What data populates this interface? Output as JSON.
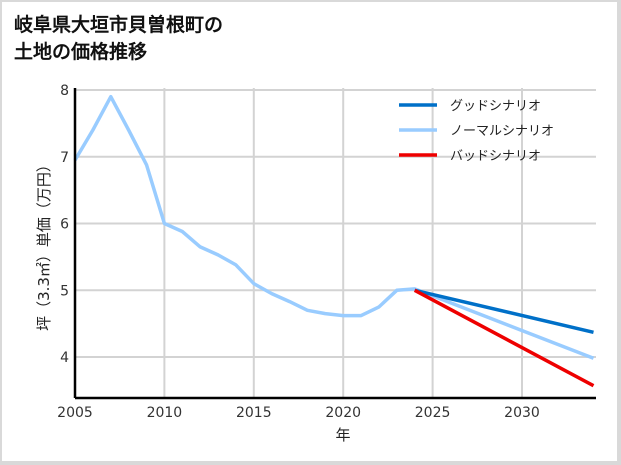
{
  "title_line1": "岐阜県大垣市貝曽根町の",
  "title_line2": "土地の価格推移",
  "chart_data": {
    "type": "line",
    "title": "岐阜県大垣市貝曽根町の土地の価格推移",
    "xlabel": "年",
    "ylabel": "坪（3.3㎡）単価（万円）",
    "xlim": [
      2005,
      2034
    ],
    "ylim": [
      3.4,
      8.05
    ],
    "xticks": [
      2005,
      2010,
      2015,
      2020,
      2025,
      2030
    ],
    "yticks": [
      4,
      5,
      6,
      7,
      8
    ],
    "grid": true,
    "legend_position": "upper right",
    "series": [
      {
        "name": "グッドシナリオ",
        "color": "#0070c8",
        "x": [
          2024,
          2034
        ],
        "values": [
          5.0,
          4.37
        ]
      },
      {
        "name": "ノーマルシナリオ",
        "color": "#99ccff",
        "x": [
          2005,
          2006,
          2007,
          2008,
          2009,
          2010,
          2011,
          2012,
          2013,
          2014,
          2015,
          2016,
          2017,
          2018,
          2019,
          2020,
          2021,
          2022,
          2023,
          2024,
          2034
        ],
        "values": [
          6.95,
          7.4,
          7.9,
          7.4,
          6.88,
          6.0,
          5.88,
          5.65,
          5.53,
          5.38,
          5.1,
          4.95,
          4.83,
          4.7,
          4.65,
          4.62,
          4.62,
          4.75,
          5.0,
          5.02,
          3.98
        ]
      },
      {
        "name": "バッドシナリオ",
        "color": "#ee0000",
        "x": [
          2024,
          2034
        ],
        "values": [
          5.0,
          3.57
        ]
      }
    ]
  }
}
